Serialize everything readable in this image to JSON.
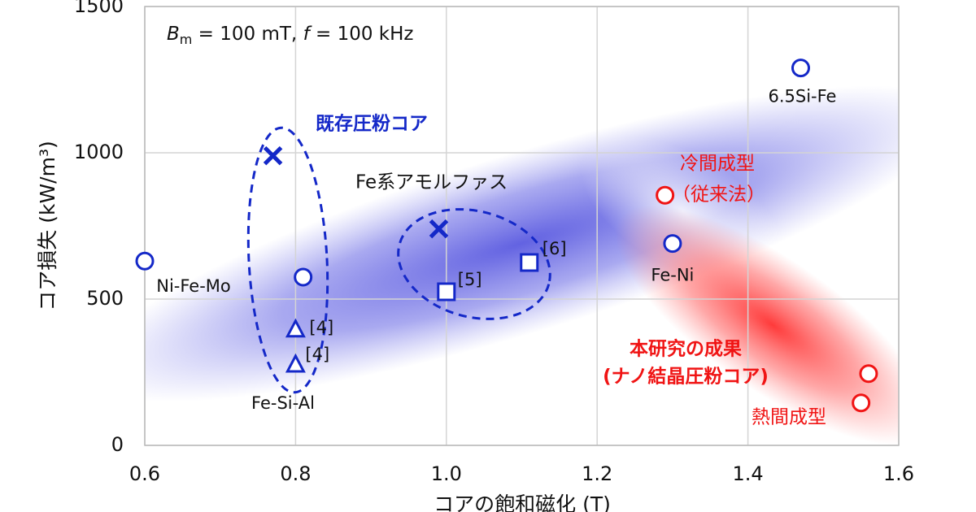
{
  "chart_data": {
    "type": "scatter",
    "x_label": "コアの飽和磁化 (T)",
    "y_label": "コア損失 (kW/m³)",
    "xlim": [
      0.6,
      1.6
    ],
    "ylim": [
      0,
      1500
    ],
    "xticks": [
      0.6,
      0.8,
      {
        "value": 1.0,
        "label": "1.0"
      },
      1.2,
      1.4,
      1.6
    ],
    "yticks": [
      0,
      500,
      1000,
      1500
    ],
    "grid": true,
    "condition": {
      "b": "B",
      "m": "m",
      "mid": " = 100 mT, ",
      "f": "f",
      "end": " = 100 kHz"
    },
    "annotations": {
      "existing": "既存圧粉コア",
      "amorphous": "Fe系アモルファス",
      "cold": "冷間成型",
      "conventional": "（従来法）",
      "result": "本研究の成果",
      "nano": "(ナノ結晶圧粉コア)",
      "hot": "熱間成型",
      "fesial": "Fe-Si-Al"
    },
    "points": [
      {
        "x": 0.6,
        "y": 630,
        "marker": "circle",
        "color": "#1428c8",
        "label": "Ni-Fe-Mo"
      },
      {
        "x": 0.77,
        "y": 990,
        "marker": "x",
        "color": "#1428c8"
      },
      {
        "x": 0.81,
        "y": 575,
        "marker": "circle",
        "color": "#1428c8"
      },
      {
        "x": 0.8,
        "y": 395,
        "marker": "triangle",
        "color": "#1428c8",
        "label": "[4]"
      },
      {
        "x": 0.8,
        "y": 275,
        "marker": "triangle",
        "color": "#1428c8",
        "label": "[4]"
      },
      {
        "x": 0.99,
        "y": 740,
        "marker": "x",
        "color": "#1428c8"
      },
      {
        "x": 1.0,
        "y": 525,
        "marker": "square",
        "color": "#1428c8",
        "label": "[5]"
      },
      {
        "x": 1.11,
        "y": 625,
        "marker": "square",
        "color": "#1428c8",
        "label": "[6]"
      },
      {
        "x": 1.29,
        "y": 855,
        "marker": "circle",
        "color": "#f01414"
      },
      {
        "x": 1.3,
        "y": 690,
        "marker": "circle",
        "color": "#1428c8",
        "label": "Fe-Ni"
      },
      {
        "x": 1.47,
        "y": 1290,
        "marker": "circle",
        "color": "#1428c8",
        "label": "6.5Si-Fe"
      },
      {
        "x": 1.56,
        "y": 245,
        "marker": "circle",
        "color": "#f01414"
      },
      {
        "x": 1.55,
        "y": 145,
        "marker": "circle",
        "color": "#f01414"
      }
    ]
  }
}
